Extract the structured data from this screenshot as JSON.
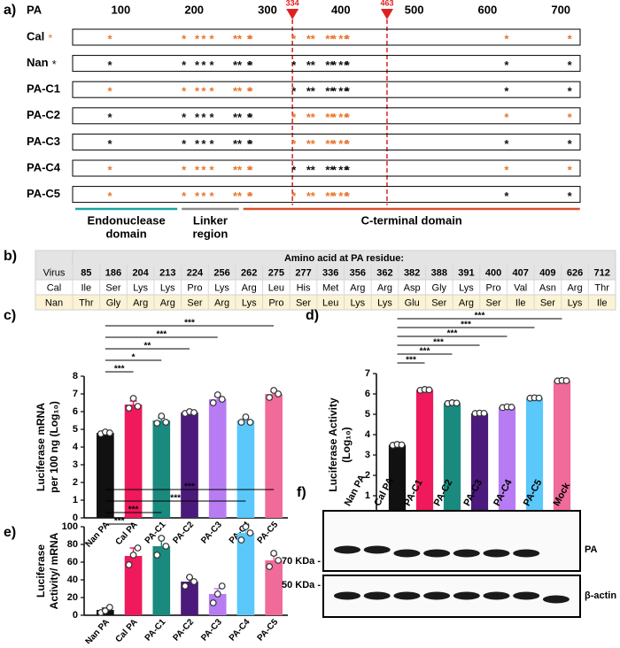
{
  "a": {
    "label": "a)",
    "axis_label": "PA",
    "ticks": [
      100,
      200,
      300,
      400,
      500,
      600,
      700
    ],
    "markers": [
      334,
      463
    ],
    "marker": "*",
    "sources": [
      {
        "name": "Cal",
        "color": "#e8762d"
      },
      {
        "name": "Nan",
        "color": "#111111"
      }
    ],
    "rows": [
      {
        "name": "PA-C1",
        "colors": [
          "#e8762d",
          "#111111",
          "#111111"
        ]
      },
      {
        "name": "PA-C2",
        "colors": [
          "#111111",
          "#e8762d",
          "#e8762d"
        ]
      },
      {
        "name": "PA-C3",
        "colors": [
          "#111111",
          "#e8762d",
          "#111111"
        ]
      },
      {
        "name": "PA-C4",
        "colors": [
          "#e8762d",
          "#111111",
          "#e8762d"
        ]
      },
      {
        "name": "PA-C5",
        "colors": [
          "#e8762d",
          "#e8762d",
          "#111111"
        ]
      }
    ],
    "domains": [
      {
        "lines": [
          "Endonuclease",
          "domain"
        ],
        "range": [
          38,
          177
        ],
        "color": "#1aa3a3"
      },
      {
        "lines": [
          "Linker",
          "region"
        ],
        "range": [
          183,
          261
        ],
        "color": "#8c8c8c"
      },
      {
        "lines": [
          "C-terminal domain"
        ],
        "range": [
          267,
          726
        ],
        "color": "#d9502a"
      }
    ]
  },
  "b": {
    "label": "b)",
    "header": "Amino acid at PA residue:",
    "column_header": "Virus",
    "residues": [
      85,
      186,
      204,
      213,
      224,
      256,
      262,
      275,
      277,
      336,
      356,
      362,
      382,
      388,
      391,
      400,
      407,
      409,
      626,
      712
    ],
    "rows": [
      {
        "name": "Cal",
        "aa": [
          "Ile",
          "Ser",
          "Lys",
          "Lys",
          "Pro",
          "Lys",
          "Arg",
          "Leu",
          "His",
          "Met",
          "Arg",
          "Arg",
          "Asp",
          "Gly",
          "Lys",
          "Pro",
          "Val",
          "Asn",
          "Arg",
          "Thr"
        ]
      },
      {
        "name": "Nan",
        "aa": [
          "Thr",
          "Gly",
          "Arg",
          "Arg",
          "Ser",
          "Arg",
          "Lys",
          "Pro",
          "Ser",
          "Leu",
          "Lys",
          "Lys",
          "Glu",
          "Ser",
          "Arg",
          "Ser",
          "Ile",
          "Ser",
          "Lys",
          "Ile"
        ]
      }
    ]
  },
  "chart_data": [
    {
      "type": "bar",
      "panel": "c)",
      "ylabel": [
        "Luciferase mRNA",
        "per 100 ng (Log₁₀)"
      ],
      "categories": [
        "Nan PA",
        "Cal PA",
        "PA-C1",
        "PA-C2",
        "PA-C3",
        "PA-C4",
        "PA-C5"
      ],
      "colors": [
        "#111111",
        "#f0195c",
        "#1a8a7e",
        "#4b1a7a",
        "#b77cf4",
        "#5ac8fa",
        "#f06a9a"
      ],
      "values": [
        4.8,
        6.4,
        5.5,
        5.95,
        6.7,
        5.5,
        7.0
      ],
      "errors": [
        0.05,
        0.2,
        0.13,
        0.03,
        0.15,
        0.1,
        0.12
      ],
      "points": [
        [
          4.75,
          4.85,
          4.8
        ],
        [
          6.2,
          6.75,
          6.3
        ],
        [
          5.35,
          5.75,
          5.4
        ],
        [
          5.9,
          6.0,
          5.95
        ],
        [
          6.5,
          6.95,
          6.7
        ],
        [
          5.4,
          5.7,
          5.4
        ],
        [
          6.8,
          7.2,
          7.0
        ]
      ],
      "ylim": [
        0,
        8
      ],
      "yticks": [
        0,
        1,
        2,
        3,
        4,
        5,
        6,
        7,
        8
      ],
      "comparisons": [
        {
          "from": "Nan PA",
          "to": "Cal PA",
          "label": "***"
        },
        {
          "from": "Nan PA",
          "to": "PA-C1",
          "label": "*"
        },
        {
          "from": "Nan PA",
          "to": "PA-C2",
          "label": "**"
        },
        {
          "from": "Nan PA",
          "to": "PA-C3",
          "label": "***"
        },
        {
          "from": "Nan PA",
          "to": "PA-C5",
          "label": "***"
        }
      ]
    },
    {
      "type": "bar",
      "panel": "d)",
      "ylabel": [
        "Luciferase Activity",
        "(Log₁₀)"
      ],
      "categories": [
        "Nan PA",
        "Cal PA",
        "PA-C1",
        "PA-C2",
        "PA-C3",
        "PA-C4",
        "PA-C5"
      ],
      "colors": [
        "#111111",
        "#f0195c",
        "#1a8a7e",
        "#4b1a7a",
        "#b77cf4",
        "#5ac8fa",
        "#f06a9a"
      ],
      "values": [
        3.5,
        6.2,
        5.55,
        5.05,
        5.35,
        5.8,
        6.65
      ],
      "errors": [
        0.03,
        0.03,
        0.03,
        0.02,
        0.03,
        0.02,
        0.02
      ],
      "points": [
        [
          3.48,
          3.52,
          3.5
        ],
        [
          6.18,
          6.22,
          6.2
        ],
        [
          5.53,
          5.57,
          5.55
        ],
        [
          5.04,
          5.06,
          5.05
        ],
        [
          5.33,
          5.37,
          5.35
        ],
        [
          5.79,
          5.81,
          5.8
        ],
        [
          6.64,
          6.66,
          6.65
        ]
      ],
      "ylim": [
        0,
        7
      ],
      "yticks": [
        0,
        1,
        2,
        3,
        4,
        5,
        6,
        7
      ],
      "comparisons": [
        {
          "from": "Nan PA",
          "to": "Cal PA",
          "label": "***"
        },
        {
          "from": "Nan PA",
          "to": "PA-C1",
          "label": "***"
        },
        {
          "from": "Nan PA",
          "to": "PA-C2",
          "label": "***"
        },
        {
          "from": "Nan PA",
          "to": "PA-C3",
          "label": "***"
        },
        {
          "from": "Nan PA",
          "to": "PA-C4",
          "label": "***"
        },
        {
          "from": "Nan PA",
          "to": "PA-C5",
          "label": "***"
        }
      ]
    },
    {
      "type": "bar",
      "panel": "e)",
      "ylabel": [
        "Luciferase",
        "Activity/ mRNA"
      ],
      "categories": [
        "Nan PA",
        "Cal PA",
        "PA-C1",
        "PA-C2",
        "PA-C3",
        "PA-C4",
        "PA-C5"
      ],
      "colors": [
        "#111111",
        "#f0195c",
        "#1a8a7e",
        "#4b1a7a",
        "#b77cf4",
        "#5ac8fa",
        "#f06a9a"
      ],
      "values": [
        6,
        67,
        78,
        38,
        24,
        93,
        62
      ],
      "errors": [
        2,
        9,
        10,
        5,
        6,
        7,
        6
      ],
      "points": [
        [
          3,
          5,
          9
        ],
        [
          57,
          68,
          76
        ],
        [
          68,
          87,
          78
        ],
        [
          33,
          43,
          38
        ],
        [
          14,
          24,
          33
        ],
        [
          85,
          100,
          93
        ],
        [
          55,
          70,
          62
        ]
      ],
      "ylim": [
        0,
        100
      ],
      "yticks": [
        0,
        20,
        40,
        60,
        80,
        100
      ],
      "comparisons": [
        {
          "from": "Nan PA",
          "to": "Cal PA",
          "label": "***"
        },
        {
          "from": "Nan PA",
          "to": "PA-C1",
          "label": "***"
        },
        {
          "from": "Nan PA",
          "to": "PA-C4",
          "label": "***"
        },
        {
          "from": "Nan PA",
          "to": "PA-C5",
          "label": "***"
        }
      ]
    }
  ],
  "f": {
    "label": "f)",
    "lanes": [
      "Nan PA",
      "Cal PA",
      "PA-C1",
      "PA-C2",
      "PA-C3",
      "PA-C4",
      "PA-C5",
      "Mock"
    ],
    "sizes": [
      "70 KDa -",
      "50 KDa -"
    ],
    "proteins": [
      "PA",
      "β-actin"
    ]
  }
}
